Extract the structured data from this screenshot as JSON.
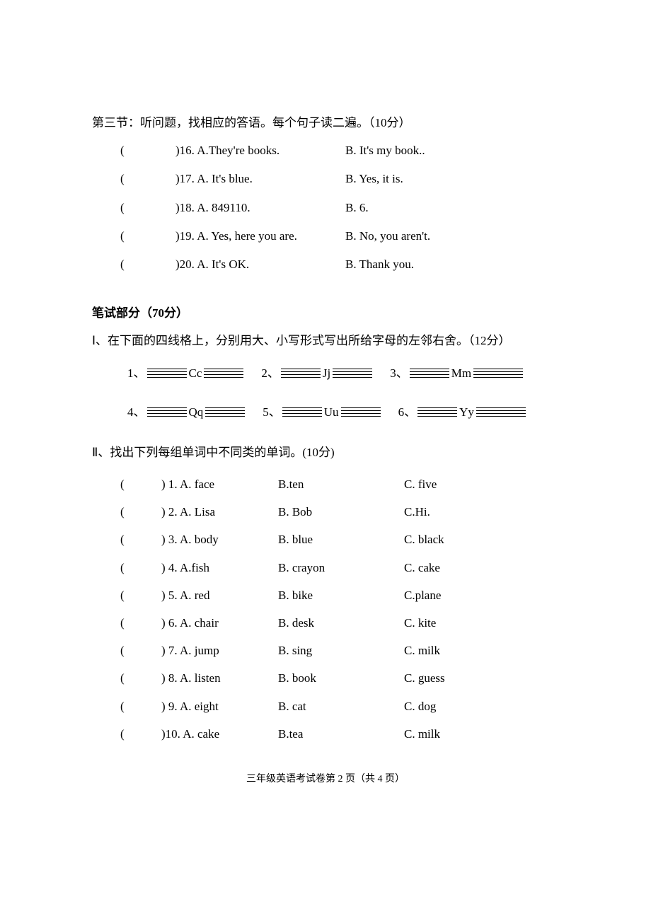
{
  "section3": {
    "title": "第三节：听问题，找相应的答语。每个句子读二遍。（10分）",
    "items": [
      {
        "num": "16",
        "a": "A.They're books.",
        "b": "B. It's my book.."
      },
      {
        "num": "17",
        "a": "A. It's blue.",
        "b": " B. Yes, it is."
      },
      {
        "num": "18",
        "a": "A. 849110.",
        "b": "B. 6."
      },
      {
        "num": "19",
        "a": "A. Yes, here you are.",
        "b": "B. No, you aren't."
      },
      {
        "num": "20",
        "a": "A. It's OK.",
        "b": "B. Thank you."
      }
    ]
  },
  "written": {
    "title": "笔试部分（70分）",
    "q1": {
      "instruction": "Ⅰ、在下面的四线格上，分别用大、小写形式写出所给字母的左邻右舍。（12分）",
      "row1": [
        {
          "num": "1、",
          "letter": "Cc"
        },
        {
          "num": "2、",
          "letter": "Jj"
        },
        {
          "num": "3、",
          "letter": "Mm"
        }
      ],
      "row2": [
        {
          "num": "4、",
          "letter": "Qq"
        },
        {
          "num": "5、",
          "letter": "Uu"
        },
        {
          "num": "6、",
          "letter": "Yy"
        }
      ]
    },
    "q2": {
      "instruction": "Ⅱ、找出下列每组单词中不同类的单词。(10分)",
      "items": [
        {
          "num": "1",
          "a": "A. face",
          "b": "B.ten",
          "c": "C. five"
        },
        {
          "num": "2",
          "a": "A. Lisa",
          "b": "B. Bob",
          "c": "C.Hi."
        },
        {
          "num": "3",
          "a": "A. body",
          "b": "B. blue",
          "c": "C. black"
        },
        {
          "num": "4",
          "a": "A.fish",
          "b": "B. crayon",
          "c": "C. cake"
        },
        {
          "num": "5",
          "a": "A. red",
          "b": "B. bike",
          "c": "C.plane"
        },
        {
          "num": "6",
          "a": "A. chair",
          "b": "B. desk",
          "c": "C. kite"
        },
        {
          "num": "7",
          "a": "A. jump",
          "b": "B. sing",
          "c": "C. milk"
        },
        {
          "num": "8",
          "a": "A. listen",
          "b": "B. book",
          "c": "C. guess"
        },
        {
          "num": "9",
          "a": "A. eight",
          "b": "B. cat",
          "c": "C. dog"
        },
        {
          "num": "10",
          "a": "A. cake",
          "b": "B.tea",
          "c": "C. milk"
        }
      ]
    }
  },
  "footer": "三年级英语考试卷第 2 页（共 4 页）"
}
